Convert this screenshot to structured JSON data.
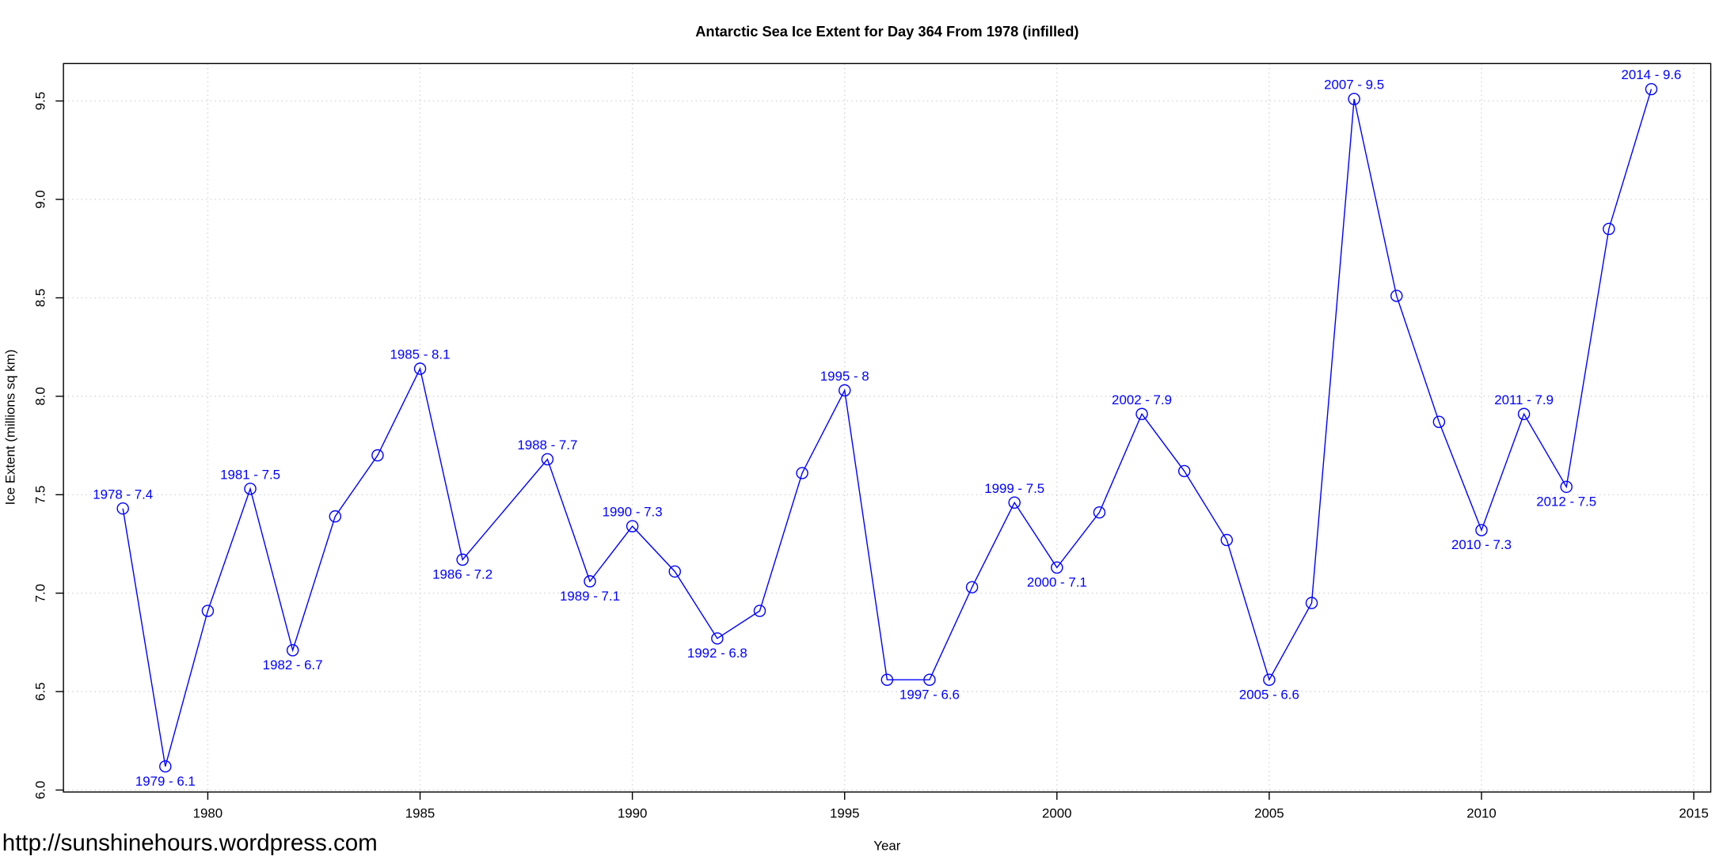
{
  "chart_data": {
    "type": "line",
    "title": "Antarctic Sea Ice Extent for Day 364 From 1978 (infilled)",
    "x_label": "Year",
    "y_label": "Ice Extent (millions sq km)",
    "watermark": "http://sunshinehours.wordpress.com",
    "x": [
      1978,
      1979,
      1980,
      1981,
      1982,
      1983,
      1984,
      1985,
      1986,
      1988,
      1989,
      1990,
      1991,
      1992,
      1993,
      1994,
      1995,
      1996,
      1997,
      1998,
      1999,
      2000,
      2001,
      2002,
      2003,
      2004,
      2005,
      2006,
      2007,
      2008,
      2009,
      2010,
      2011,
      2012,
      2013,
      2014
    ],
    "values": [
      7.43,
      6.12,
      6.91,
      7.53,
      6.71,
      7.39,
      7.7,
      8.14,
      7.17,
      7.68,
      7.06,
      7.34,
      7.11,
      6.77,
      6.91,
      7.61,
      8.03,
      6.56,
      6.56,
      7.03,
      7.46,
      7.13,
      7.41,
      7.91,
      7.62,
      7.27,
      6.56,
      6.95,
      9.51,
      8.51,
      7.87,
      7.32,
      7.91,
      7.54,
      8.85,
      9.56
    ],
    "value_labels": [
      "1978 - 7.4",
      "1979 - 6.1",
      null,
      "1981 - 7.5",
      "1982 - 6.7",
      null,
      null,
      "1985 - 8.1",
      "1986 - 7.2",
      "1988 - 7.7",
      "1989 - 7.1",
      "1990 - 7.3",
      null,
      "1992 - 6.8",
      null,
      null,
      "1995 - 8",
      null,
      "1997 - 6.6",
      null,
      "1999 - 7.5",
      "2000 - 7.1",
      null,
      "2002 - 7.9",
      null,
      null,
      "2005 - 6.6",
      null,
      "2007 - 9.5",
      null,
      null,
      "2010 - 7.3",
      "2011 - 7.9",
      "2012 - 7.5",
      null,
      "2014 - 9.6"
    ],
    "color": "#0000ff",
    "xlim": [
      1976.6,
      2015.4
    ],
    "xticks": [
      1980,
      1985,
      1990,
      1995,
      2000,
      2005,
      2010,
      2015
    ],
    "ylim": [
      5.99,
      9.69
    ],
    "yticks": [
      {
        "value": 6,
        "label": "6.0"
      },
      6.5,
      {
        "value": 7,
        "label": "7.0"
      },
      7.5,
      {
        "value": 8,
        "label": "8.0"
      },
      8.5,
      {
        "value": 9,
        "label": "9.0"
      },
      9.5
    ],
    "grid": true
  }
}
